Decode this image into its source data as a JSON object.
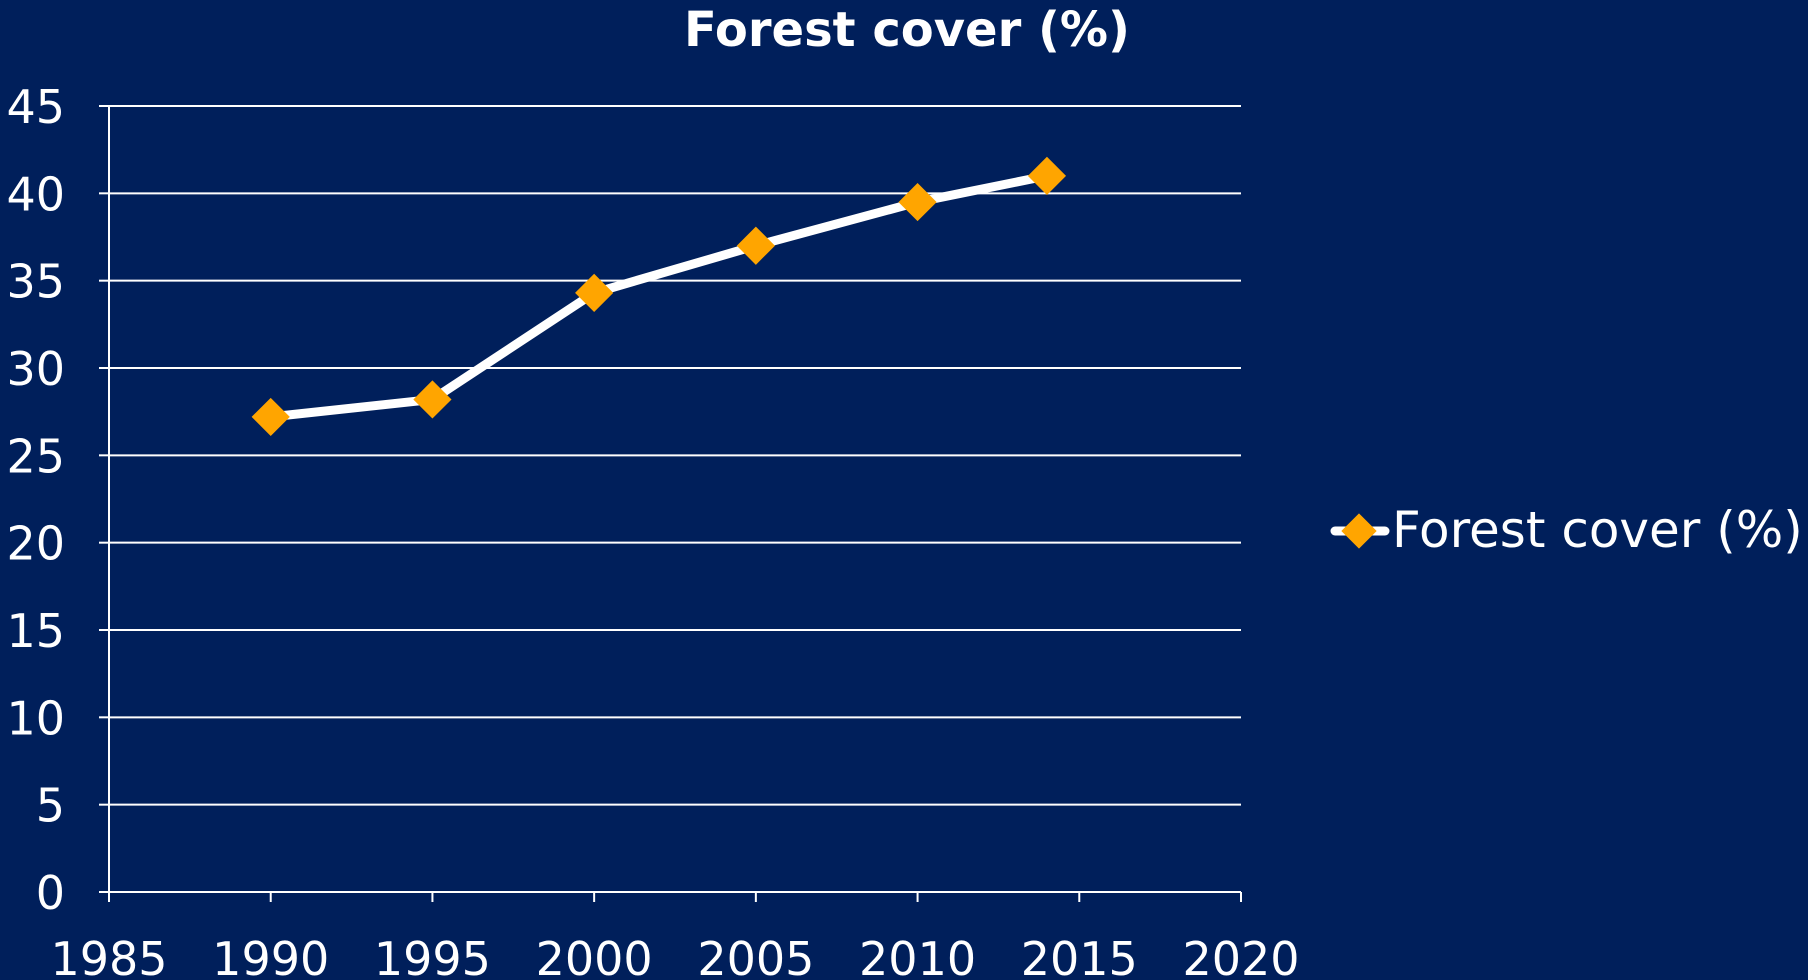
{
  "chart_data": {
    "type": "line",
    "title": "Forest cover (%)",
    "xlabel": "",
    "ylabel": "",
    "xlim": [
      1985,
      2020
    ],
    "ylim": [
      0,
      45
    ],
    "x_ticks": [
      "1985",
      "1990",
      "1995",
      "2000",
      "2005",
      "2010",
      "2015",
      "2020"
    ],
    "y_ticks": [
      "0",
      "5",
      "10",
      "15",
      "20",
      "25",
      "30",
      "35",
      "40",
      "45"
    ],
    "grid": "horizontal",
    "legend_position": "right",
    "series": [
      {
        "name": "Forest cover (%)",
        "x": [
          1990,
          1995,
          2000,
          2005,
          2010,
          2014
        ],
        "values": [
          27.2,
          28.2,
          34.3,
          37.0,
          39.5,
          41.0
        ],
        "line_color": "#ffffff",
        "marker": "diamond",
        "marker_color": "#ffa500"
      }
    ]
  },
  "colors": {
    "background": "#001f5b",
    "text": "#ffffff",
    "gridline": "#ffffff"
  }
}
